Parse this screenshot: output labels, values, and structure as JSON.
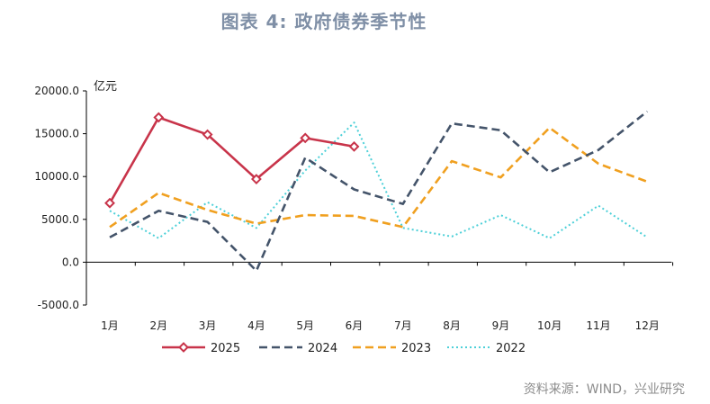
{
  "title": "图表 4:  政府债券季节性",
  "source": "资料来源：WIND，兴业研究",
  "chart_data": {
    "type": "line",
    "title": "图表 4:  政府债券季节性",
    "ylabel": "亿元",
    "xlabel": "",
    "ylim": [
      -5000,
      20000
    ],
    "yticks": [
      -5000,
      0,
      5000,
      10000,
      15000,
      20000
    ],
    "ytick_labels": [
      "-5000.0",
      "0.0",
      "5000.0",
      "10000.0",
      "15000.0",
      "20000.0"
    ],
    "categories": [
      "1月",
      "2月",
      "3月",
      "4月",
      "5月",
      "6月",
      "7月",
      "8月",
      "9月",
      "10月",
      "11月",
      "12月"
    ],
    "legend_position": "bottom",
    "grid": false,
    "series": [
      {
        "name": "2025",
        "color": "#c8344a",
        "style": "solid-marker",
        "values": [
          6900,
          16900,
          14900,
          9700,
          14500,
          13500,
          null,
          null,
          null,
          null,
          null,
          null
        ]
      },
      {
        "name": "2024",
        "color": "#44546a",
        "style": "dash",
        "values": [
          2900,
          6000,
          4700,
          -1000,
          12200,
          8500,
          6800,
          16200,
          15400,
          10500,
          13100,
          17600
        ]
      },
      {
        "name": "2023",
        "color": "#f0a020",
        "style": "dash",
        "values": [
          4100,
          8100,
          6100,
          4500,
          5500,
          5400,
          4100,
          11800,
          9900,
          15700,
          11500,
          9400
        ]
      },
      {
        "name": "2022",
        "color": "#4dd0d8",
        "style": "dot",
        "values": [
          6000,
          2800,
          7000,
          4000,
          10700,
          16300,
          4000,
          3000,
          5500,
          2800,
          6600,
          2900
        ]
      }
    ]
  }
}
